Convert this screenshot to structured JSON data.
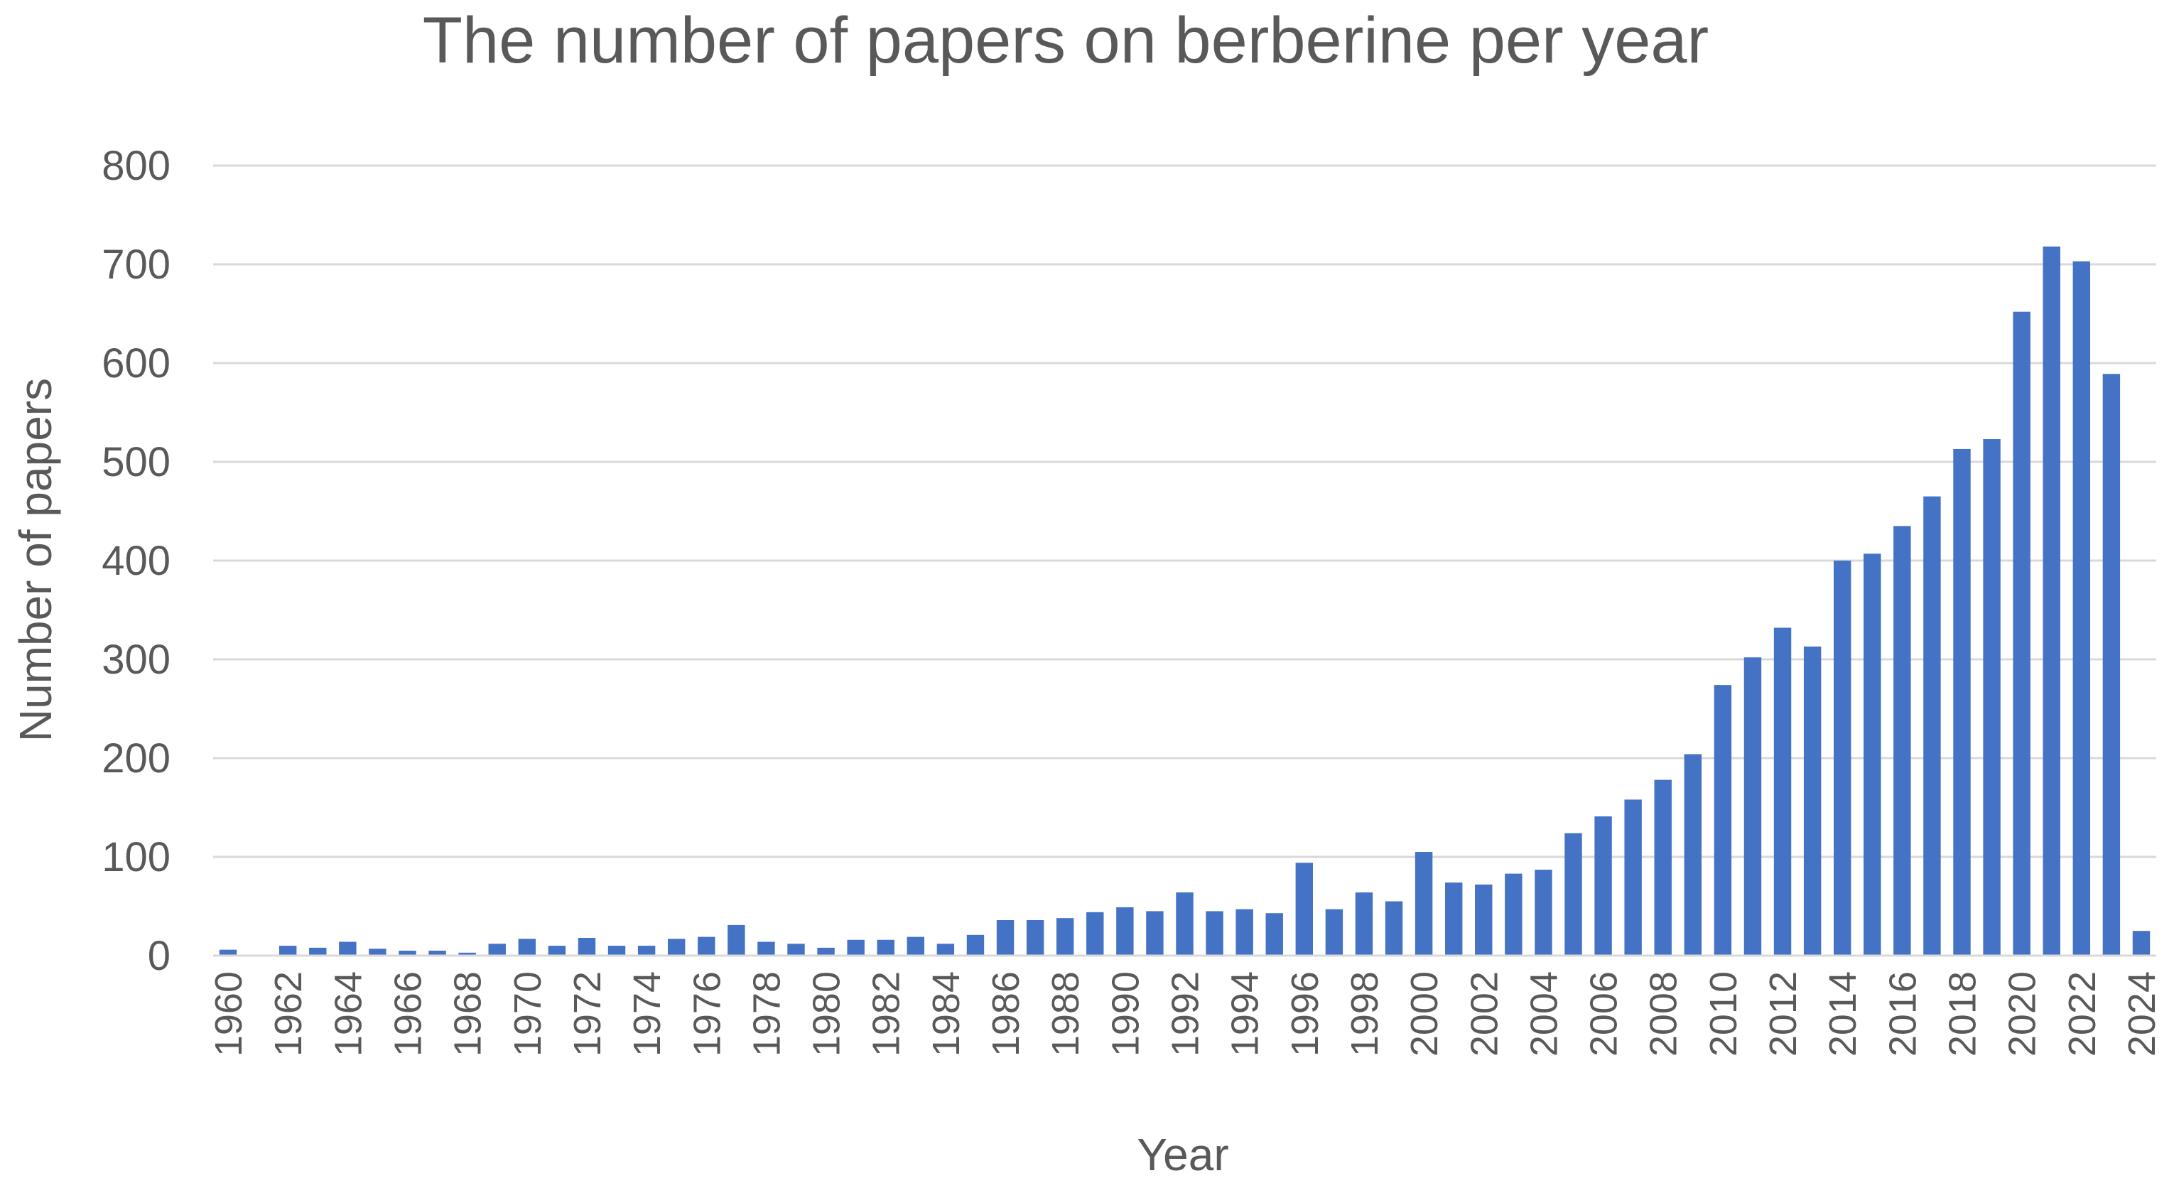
{
  "chart_data": {
    "type": "bar",
    "title": "The number of papers on berberine per year",
    "xlabel": "Year",
    "ylabel": "Number of papers",
    "ylim": [
      0,
      800
    ],
    "yticks": [
      0,
      100,
      200,
      300,
      400,
      500,
      600,
      700,
      800
    ],
    "grid": true,
    "bar_color": "#4472C4",
    "categories": [
      "1960",
      "1961",
      "1962",
      "1963",
      "1964",
      "1965",
      "1966",
      "1967",
      "1968",
      "1969",
      "1970",
      "1971",
      "1972",
      "1973",
      "1974",
      "1975",
      "1976",
      "1977",
      "1978",
      "1979",
      "1980",
      "1981",
      "1982",
      "1983",
      "1984",
      "1985",
      "1986",
      "1987",
      "1988",
      "1989",
      "1990",
      "1991",
      "1992",
      "1993",
      "1994",
      "1995",
      "1996",
      "1997",
      "1998",
      "1999",
      "2000",
      "2001",
      "2002",
      "2003",
      "2004",
      "2005",
      "2006",
      "2007",
      "2008",
      "2009",
      "2010",
      "2011",
      "2012",
      "2013",
      "2014",
      "2015",
      "2016",
      "2017",
      "2018",
      "2019",
      "2020",
      "2021",
      "2022",
      "2023",
      "2024"
    ],
    "tick_labels": [
      "1960",
      "1962",
      "1964",
      "1966",
      "1968",
      "1970",
      "1972",
      "1974",
      "1976",
      "1978",
      "1980",
      "1982",
      "1984",
      "1986",
      "1988",
      "1990",
      "1992",
      "1994",
      "1996",
      "1998",
      "2000",
      "2002",
      "2004",
      "2006",
      "2008",
      "2010",
      "2012",
      "2014",
      "2016",
      "2018",
      "2020",
      "2022",
      "2024"
    ],
    "values": [
      6,
      1,
      10,
      8,
      14,
      7,
      5,
      5,
      3,
      12,
      17,
      10,
      18,
      10,
      10,
      17,
      19,
      31,
      14,
      12,
      8,
      16,
      16,
      19,
      12,
      21,
      36,
      36,
      38,
      44,
      49,
      45,
      64,
      45,
      47,
      43,
      94,
      47,
      64,
      55,
      105,
      74,
      72,
      83,
      87,
      124,
      141,
      158,
      178,
      204,
      274,
      302,
      332,
      313,
      400,
      407,
      435,
      465,
      513,
      523,
      652,
      718,
      703,
      589,
      25
    ]
  }
}
